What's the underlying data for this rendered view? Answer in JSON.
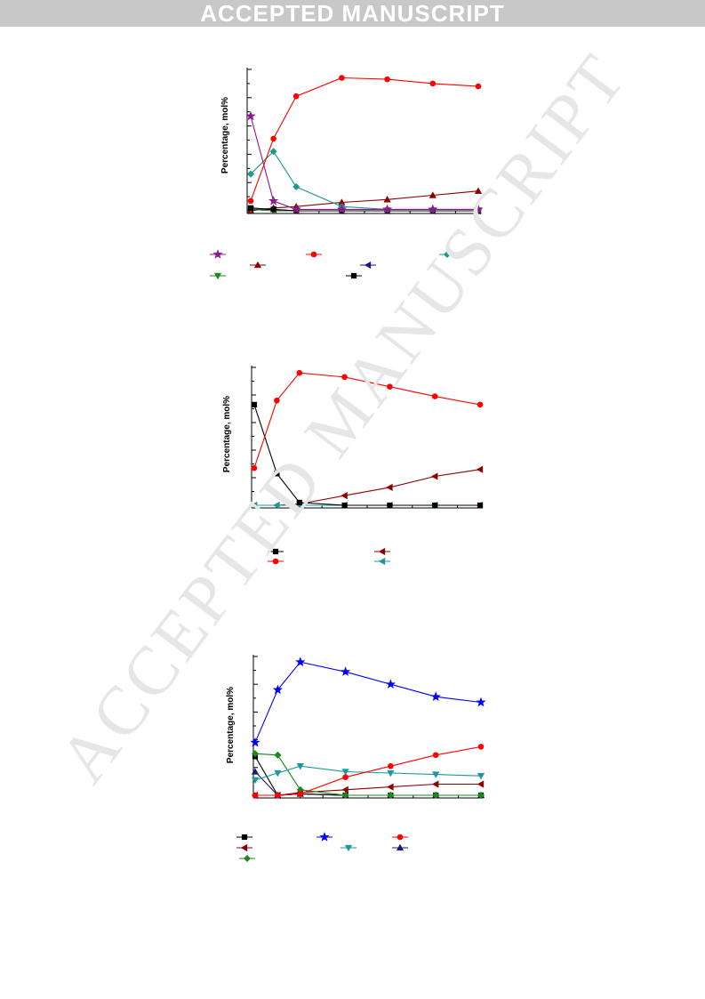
{
  "banner": {
    "text": "ACCEPTED MANUSCRIPT"
  },
  "watermark": {
    "text": "ACCEPTED MANUSCRIPT"
  },
  "colors": {
    "purple": "#8b1a8b",
    "red": "#ff0000",
    "teal": "#1a9a8a",
    "darkred": "#8b0000",
    "navy": "#1a1a7a",
    "green": "#1a8a1a",
    "black": "#000000",
    "blue": "#0000ff",
    "cyan": "#1a9a9a"
  },
  "chart_data": [
    {
      "type": "line",
      "ylabel": "Percentage, mol%",
      "xlabel": "",
      "x": [
        0,
        1,
        2,
        4,
        6,
        8,
        10
      ],
      "ylim": [
        0,
        100
      ],
      "series": [
        {
          "values": [
            0,
            2,
            3,
            6,
            8,
            11,
            14
          ],
          "color": "#8b0000",
          "marker": "triangle-up"
        },
        {
          "values": [
            1,
            1,
            0,
            0,
            0,
            0,
            0
          ],
          "color": "#1a1a7a",
          "marker": "triangle-left"
        },
        {
          "values": [
            1,
            0,
            0,
            0,
            0,
            0,
            0
          ],
          "color": "#1a8a1a",
          "marker": "triangle-down"
        },
        {
          "values": [
            2,
            1,
            0,
            0,
            0,
            0,
            0
          ],
          "color": "#000000",
          "marker": "square"
        },
        {
          "values": [
            26,
            42,
            17,
            3,
            1,
            1,
            1
          ],
          "color": "#1a9a8a",
          "marker": "diamond"
        },
        {
          "values": [
            67,
            7,
            1,
            1,
            1,
            1,
            1
          ],
          "color": "#8b1a8b",
          "marker": "star"
        },
        {
          "values": [
            7,
            51,
            81,
            94,
            93,
            90,
            88
          ],
          "color": "#ff0000",
          "marker": "circle"
        }
      ]
    },
    {
      "type": "line",
      "ylabel": "Percentage, mol%",
      "xlabel": "",
      "x": [
        0,
        1,
        2,
        4,
        6,
        8,
        10
      ],
      "ylim": [
        0,
        100
      ],
      "series": [
        {
          "values": [
            0,
            0,
            1,
            7,
            13,
            21,
            26
          ],
          "color": "#8b0000",
          "marker": "triangle-left"
        },
        {
          "values": [
            0,
            0,
            0,
            0,
            0,
            0,
            0
          ],
          "color": "#1a9a9a",
          "marker": "triangle-left"
        },
        {
          "values": [
            73,
            23,
            2,
            0,
            0,
            0,
            0
          ],
          "color": "#000000",
          "marker": "square"
        },
        {
          "values": [
            27,
            76,
            96,
            93,
            86,
            79,
            73
          ],
          "color": "#ff0000",
          "marker": "circle"
        }
      ]
    },
    {
      "type": "line",
      "ylabel": "Percentage, mol%",
      "xlabel": "",
      "x": [
        0,
        1,
        2,
        4,
        6,
        8,
        10
      ],
      "ylim": [
        0,
        100
      ],
      "series": [
        {
          "values": [
            0,
            0,
            2,
            4,
            6,
            8,
            8
          ],
          "color": "#8b0000",
          "marker": "triangle-left"
        },
        {
          "values": [
            17,
            0,
            1,
            0,
            0,
            0,
            0
          ],
          "color": "#1a1a7a",
          "marker": "triangle-up"
        },
        {
          "values": [
            28,
            0,
            1,
            0,
            0,
            0,
            0
          ],
          "color": "#000000",
          "marker": "square"
        },
        {
          "values": [
            30,
            29,
            4,
            0,
            0,
            0,
            0
          ],
          "color": "#1a8a1a",
          "marker": "diamond"
        },
        {
          "values": [
            11,
            16,
            21,
            17,
            16,
            15,
            14
          ],
          "color": "#1a9a9a",
          "marker": "triangle-down"
        },
        {
          "values": [
            0,
            0,
            1,
            13,
            21,
            29,
            35
          ],
          "color": "#ff0000",
          "marker": "circle"
        },
        {
          "values": [
            38,
            76,
            96,
            89,
            80,
            71,
            67
          ],
          "color": "#0000ff",
          "marker": "star"
        }
      ]
    }
  ],
  "legends": [
    [
      {
        "marker": "star",
        "color": "#8b1a8b"
      },
      {
        "marker": "circle",
        "color": "#ff0000"
      },
      {
        "marker": "diamond",
        "color": "#1a9a8a"
      },
      {
        "marker": "triangle-up",
        "color": "#8b0000"
      },
      {
        "marker": "triangle-left",
        "color": "#1a1a7a"
      },
      {
        "marker": "triangle-down",
        "color": "#1a8a1a"
      },
      {
        "marker": "square",
        "color": "#000000"
      }
    ],
    [
      {
        "marker": "square",
        "color": "#000000"
      },
      {
        "marker": "triangle-left",
        "color": "#8b0000"
      },
      {
        "marker": "circle",
        "color": "#ff0000"
      },
      {
        "marker": "triangle-left",
        "color": "#1a9a9a"
      }
    ],
    [
      {
        "marker": "square",
        "color": "#000000"
      },
      {
        "marker": "star",
        "color": "#0000ff"
      },
      {
        "marker": "circle",
        "color": "#ff0000"
      },
      {
        "marker": "triangle-left",
        "color": "#8b0000"
      },
      {
        "marker": "triangle-down",
        "color": "#1a9a9a"
      },
      {
        "marker": "triangle-up",
        "color": "#1a1a7a"
      },
      {
        "marker": "diamond",
        "color": "#1a8a1a"
      }
    ]
  ]
}
